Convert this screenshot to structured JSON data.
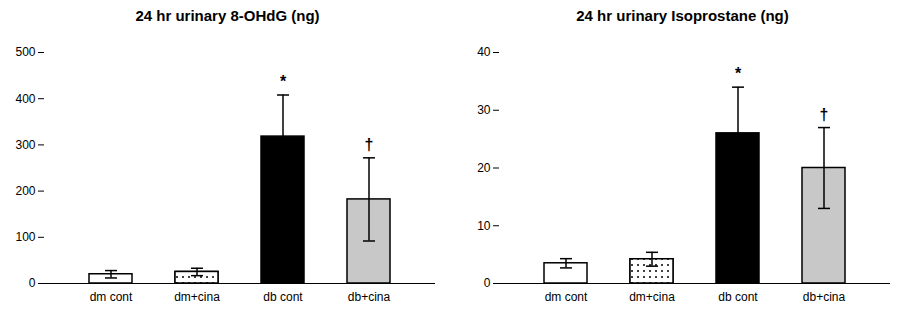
{
  "chart_data": [
    {
      "type": "bar",
      "title": "24 hr urinary 8-OHdG (ng)",
      "categories": [
        "dm cont",
        "dm+cina",
        "db cont",
        "db+cina"
      ],
      "values": [
        20,
        25,
        318,
        182
      ],
      "errors": [
        8,
        8,
        90,
        90
      ],
      "colors": [
        "#ffffff",
        "#ffffff",
        "#000000",
        "#c8c8c8"
      ],
      "ylim": [
        0,
        500
      ],
      "yticks": [
        0,
        100,
        200,
        300,
        400,
        500
      ],
      "grid": false,
      "annotations": [
        {
          "text": "*",
          "bar_index": 2
        },
        {
          "text": "†",
          "bar_index": 3
        }
      ]
    },
    {
      "type": "bar",
      "title": "24 hr urinary Isoprostane (ng)",
      "categories": [
        "dm cont",
        "dm+cina",
        "db cont",
        "db+cina"
      ],
      "values": [
        3.5,
        4.2,
        26.0,
        20.0
      ],
      "errors": [
        0.8,
        1.2,
        8.0,
        7.0
      ],
      "colors": [
        "#ffffff",
        "#ffffff",
        "#000000",
        "#c8c8c8"
      ],
      "ylim": [
        0,
        40
      ],
      "yticks": [
        0,
        10,
        20,
        30,
        40
      ],
      "grid": false,
      "annotations": [
        {
          "text": "*",
          "bar_index": 2
        },
        {
          "text": "†",
          "bar_index": 3
        }
      ]
    }
  ]
}
